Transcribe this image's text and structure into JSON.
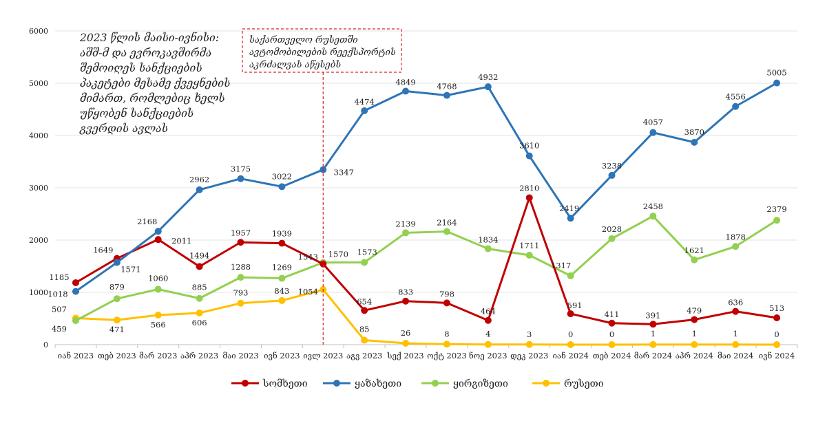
{
  "chart_data": {
    "type": "line",
    "categories": [
      "იან 2023",
      "თებ 2023",
      "მარ 2023",
      "აპრ 2023",
      "მაი 2023",
      "ივნ 2023",
      "ივლ 2023",
      "აგვ 2023",
      "სექ 2023",
      "ოქტ 2023",
      "ნოე 2023",
      "დეკ 2023",
      "იან 2024",
      "თებ 2024",
      "მარ 2024",
      "აპრ 2024",
      "მაი 2024",
      "ივნ 2024"
    ],
    "series": [
      {
        "name": "სომხეთი",
        "color": "#c00000",
        "values": [
          1185,
          1649,
          2011,
          1494,
          1957,
          1939,
          1543,
          654,
          833,
          798,
          464,
          2810,
          591,
          411,
          391,
          479,
          636,
          513
        ]
      },
      {
        "name": "ყაზახეთი",
        "color": "#2e75b6",
        "values": [
          1018,
          1571,
          2168,
          2962,
          3175,
          3022,
          3347,
          4474,
          4849,
          4768,
          4932,
          3610,
          2419,
          3238,
          4057,
          3870,
          4556,
          5005
        ]
      },
      {
        "name": "ყირგიზეთი",
        "color": "#92d050",
        "values": [
          459,
          879,
          1060,
          885,
          1288,
          1269,
          1570,
          1573,
          2139,
          2164,
          1834,
          1711,
          1317,
          2028,
          2458,
          1621,
          1878,
          2379
        ]
      },
      {
        "name": "რუსეთი",
        "color": "#ffc000",
        "values": [
          507,
          471,
          566,
          606,
          793,
          843,
          1054,
          85,
          26,
          8,
          4,
          3,
          0,
          0,
          1,
          1,
          1,
          0
        ]
      }
    ],
    "yticks": [
      0,
      1000,
      2000,
      3000,
      4000,
      5000,
      6000
    ],
    "ylim": [
      0,
      6000
    ],
    "grid": true,
    "legend": "bottom",
    "annotations": {
      "left_note": [
        "2023 წლის მაისი-ივნისი:",
        "აშშ-მ და ევროკავშირმა",
        "შემოიღეს სანქციების",
        "პაკეტები მესამე ქვეყნების",
        "მიმართ, რომლებიც ხელს",
        "უწყობენ სანქციების",
        "გვერდის ავლას"
      ],
      "box_note": [
        "საქართველო რუსეთში",
        "ავტომობილების რეექსპორტის",
        "აკრძალვას აწესებს"
      ],
      "marker_category": "ივლ 2023"
    }
  }
}
